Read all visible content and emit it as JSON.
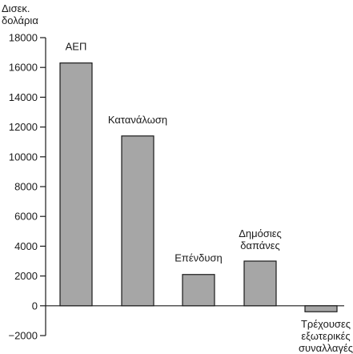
{
  "chart_data": {
    "type": "bar",
    "ylabel_lines": [
      "Δισεκ.",
      "δολάρια"
    ],
    "ylim": [
      -2000,
      18000
    ],
    "yticks": [
      -2000,
      0,
      2000,
      4000,
      6000,
      8000,
      10000,
      12000,
      14000,
      16000,
      18000
    ],
    "ytick_labels": [
      "−2000",
      "0",
      "2000",
      "4000",
      "6000",
      "8000",
      "10000",
      "12000",
      "14000",
      "16000",
      "18000"
    ],
    "categories": [
      [
        "ΑΕΠ"
      ],
      [
        "Κατανάλωση"
      ],
      [
        "Επένδυση"
      ],
      [
        "Δημόσιες",
        "δαπάνες"
      ],
      [
        "Τρέχουσες",
        "εξωτερικές",
        "συναλλαγές"
      ]
    ],
    "values": [
      16300,
      11400,
      2100,
      3000,
      -400
    ],
    "bar_color": "#a6a6a6",
    "grid": false,
    "legend": "none"
  }
}
